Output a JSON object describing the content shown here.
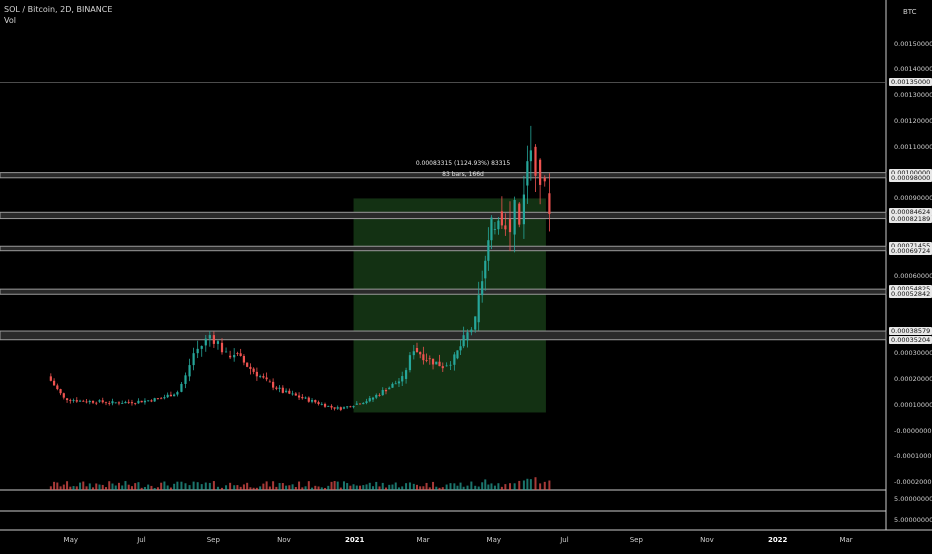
{
  "header": {
    "symbol_line": "SOL / Bitcoin, 2D, BINANCE",
    "volume_label": "Vol"
  },
  "price_scale": {
    "currency_label": "BTC",
    "ticks": [
      "0.00150000",
      "0.00140000",
      "0.00130000",
      "0.00120000",
      "0.00110000",
      "0.00090000",
      "0.00060000",
      "0.00030000",
      "0.00020000",
      "0.00010000",
      "-0.00000000",
      "-0.00010000",
      "-0.00020000"
    ],
    "tagged_levels": [
      "0.00135000",
      "0.00100000",
      "0.00098000",
      "0.00084624",
      "0.00082189",
      "0.00071455",
      "0.00069724",
      "0.00054825",
      "0.00052842",
      "0.00038579",
      "0.00035204"
    ],
    "volume_ticks": [
      "5.00000000",
      "5.00000000"
    ]
  },
  "time_axis": {
    "labels": [
      "May",
      "Jul",
      "Sep",
      "Nov",
      "2021",
      "Mar",
      "May",
      "Jul",
      "Sep",
      "Nov",
      "2022",
      "Mar"
    ],
    "bold": [
      "2021",
      "2022"
    ]
  },
  "measure_tool": {
    "line1": "0.00083315 (1124.93%) 83315",
    "line2": "83 bars, 166d"
  },
  "colors": {
    "background": "#000000",
    "up": "#26a69a",
    "down": "#ef5350",
    "zone_fill": "#2a2a2a",
    "zone_border": "#9a9a9a",
    "measure_fill": "#163a16"
  },
  "chart_data": {
    "type": "candlestick",
    "title": "SOL / Bitcoin, 2D, BINANCE",
    "xlabel": "",
    "ylabel": "",
    "x_range": [
      "2020-04",
      "2022-04"
    ],
    "ylim": [
      -0.00025,
      0.00165
    ],
    "support_resistance_zones": [
      [
        0.00098,
        0.001
      ],
      [
        0.00082189,
        0.00084624
      ],
      [
        0.00069724,
        0.00071455
      ],
      [
        0.00052842,
        0.00054825
      ],
      [
        0.00035204,
        0.00038579
      ]
    ],
    "horizontal_line": 0.00135,
    "measure": {
      "from_date": "2020-12-31",
      "to_date": "2021-06-15",
      "low": 7e-05,
      "high": 0.0009
    },
    "series": [
      {
        "points": [
          [
            "2020-04-11",
            0.00021
          ],
          [
            "2020-04-25",
            0.000125
          ],
          [
            "2020-05-09",
            0.000115
          ],
          [
            "2020-05-23",
            0.000112
          ],
          [
            "2020-06-06",
            0.000108
          ],
          [
            "2020-06-20",
            0.00011
          ],
          [
            "2020-07-04",
            0.000115
          ],
          [
            "2020-07-18",
            0.000125
          ],
          [
            "2020-08-01",
            0.00015
          ],
          [
            "2020-08-08",
            0.00021
          ],
          [
            "2020-08-15",
            0.0003
          ],
          [
            "2020-08-22",
            0.00033
          ],
          [
            "2020-08-29",
            0.00037
          ],
          [
            "2020-09-05",
            0.00034
          ],
          [
            "2020-09-12",
            0.00029
          ],
          [
            "2020-09-19",
            0.0003
          ],
          [
            "2020-10-03",
            0.00024
          ],
          [
            "2020-10-17",
            0.00019
          ],
          [
            "2020-10-31",
            0.00015
          ],
          [
            "2020-11-14",
            0.00013
          ],
          [
            "2020-11-28",
            0.00011
          ],
          [
            "2020-12-12",
            9e-05
          ],
          [
            "2020-12-20",
            8.5e-05
          ],
          [
            "2020-12-31",
            0.0001
          ],
          [
            "2021-01-14",
            0.00012
          ],
          [
            "2021-01-28",
            0.00016
          ],
          [
            "2021-02-11",
            0.0002
          ],
          [
            "2021-02-21",
            0.00032
          ],
          [
            "2021-03-04",
            0.00028
          ],
          [
            "2021-03-18",
            0.00025
          ],
          [
            "2021-03-28",
            0.00028
          ],
          [
            "2021-04-05",
            0.00035
          ],
          [
            "2021-04-15",
            0.00042
          ],
          [
            "2021-04-21",
            0.00059
          ],
          [
            "2021-04-29",
            0.00078
          ],
          [
            "2021-05-05",
            0.00085
          ],
          [
            "2021-05-11",
            0.00082
          ],
          [
            "2021-05-15",
            0.00076
          ],
          [
            "2021-05-19",
            0.00088
          ],
          [
            "2021-05-23",
            0.0008
          ],
          [
            "2021-05-27",
            0.00095
          ],
          [
            "2021-06-02",
            0.0011
          ],
          [
            "2021-06-06",
            0.00105
          ],
          [
            "2021-06-10",
            0.00098
          ],
          [
            "2021-06-14",
            0.00092
          ],
          [
            "2021-06-18",
            0.00088
          ]
        ]
      }
    ]
  }
}
